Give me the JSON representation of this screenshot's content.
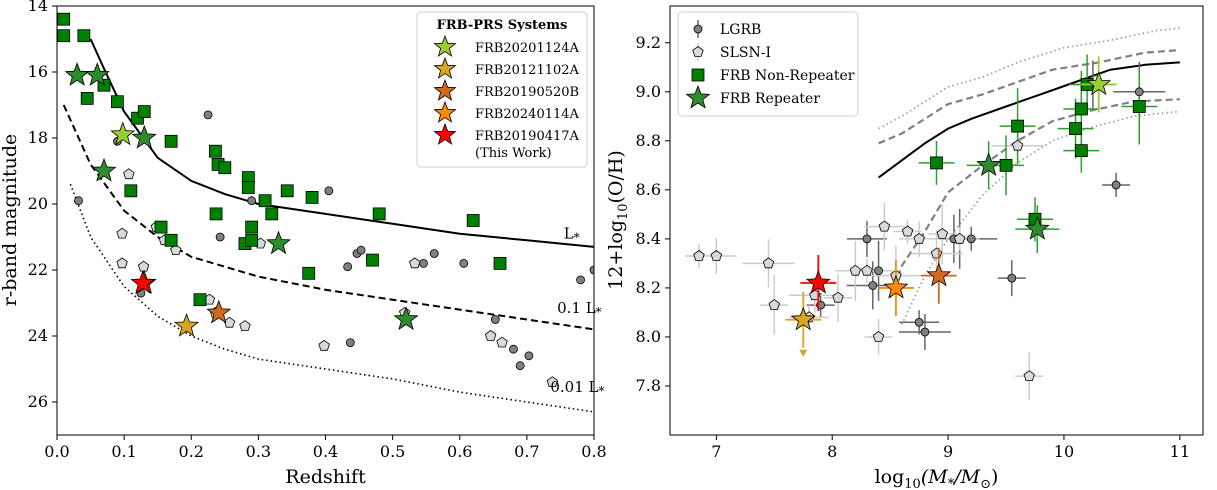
{
  "chart_data": [
    {
      "type": "scatter",
      "xlabel": "Redshift",
      "ylabel": "r-band magnitude",
      "xlim": [
        0.0,
        0.8
      ],
      "ylim": [
        27.0,
        14.0
      ],
      "y_inverted": true,
      "xticks": [
        0.0,
        0.1,
        0.2,
        0.3,
        0.4,
        0.5,
        0.6,
        0.7,
        0.8
      ],
      "yticks": [
        14,
        16,
        18,
        20,
        22,
        24,
        26
      ],
      "xtick_labels": [
        "0.0",
        "0.1",
        "0.2",
        "0.3",
        "0.4",
        "0.5",
        "0.6",
        "0.7",
        "0.8"
      ],
      "ytick_labels": [
        "14",
        "16",
        "18",
        "20",
        "22",
        "24",
        "26"
      ],
      "legend_title": "FRB-PRS Systems",
      "legend_position": "top-right",
      "curves": [
        {
          "label": "L*",
          "style": "solid",
          "points": [
            [
              0.05,
              15.0
            ],
            [
              0.07,
              15.9
            ],
            [
              0.1,
              17.2
            ],
            [
              0.15,
              18.6
            ],
            [
              0.2,
              19.3
            ],
            [
              0.25,
              19.7
            ],
            [
              0.3,
              20.0
            ],
            [
              0.4,
              20.3
            ],
            [
              0.5,
              20.6
            ],
            [
              0.6,
              20.9
            ],
            [
              0.7,
              21.1
            ],
            [
              0.8,
              21.3
            ]
          ]
        },
        {
          "label": "0.1 L*",
          "style": "dashed",
          "points": [
            [
              0.01,
              17.0
            ],
            [
              0.05,
              18.8
            ],
            [
              0.1,
              20.2
            ],
            [
              0.15,
              21.0
            ],
            [
              0.2,
              21.6
            ],
            [
              0.3,
              22.2
            ],
            [
              0.4,
              22.6
            ],
            [
              0.5,
              22.9
            ],
            [
              0.6,
              23.2
            ],
            [
              0.7,
              23.5
            ],
            [
              0.8,
              23.8
            ]
          ]
        },
        {
          "label": "0.01 L*",
          "style": "dotted",
          "points": [
            [
              0.02,
              19.4
            ],
            [
              0.05,
              21.0
            ],
            [
              0.1,
              22.5
            ],
            [
              0.15,
              23.4
            ],
            [
              0.2,
              24.0
            ],
            [
              0.25,
              24.4
            ],
            [
              0.3,
              24.7
            ],
            [
              0.4,
              25.0
            ],
            [
              0.5,
              25.3
            ],
            [
              0.6,
              25.7
            ],
            [
              0.7,
              26.0
            ],
            [
              0.8,
              26.3
            ]
          ]
        }
      ],
      "curve_labels": [
        {
          "text": "L",
          "sub": "*",
          "x": 0.755,
          "y": 21.05
        },
        {
          "text": "0.1 L",
          "sub": "*",
          "x": 0.745,
          "y": 23.3
        },
        {
          "text": "0.01 L",
          "sub": "*",
          "x": 0.735,
          "y": 25.7
        }
      ],
      "series": [
        {
          "name": "LGRB",
          "marker": "circle",
          "color": "#808080",
          "points": [
            [
              0.032,
              19.9
            ],
            [
              0.09,
              18.1
            ],
            [
              0.125,
              22.7
            ],
            [
              0.225,
              17.3
            ],
            [
              0.243,
              21.0
            ],
            [
              0.29,
              19.9
            ],
            [
              0.405,
              19.6
            ],
            [
              0.433,
              21.9
            ],
            [
              0.437,
              24.2
            ],
            [
              0.447,
              21.5
            ],
            [
              0.453,
              21.4
            ],
            [
              0.546,
              21.8
            ],
            [
              0.562,
              21.5
            ],
            [
              0.606,
              21.8
            ],
            [
              0.653,
              23.5
            ],
            [
              0.68,
              24.4
            ],
            [
              0.69,
              24.9
            ],
            [
              0.703,
              24.6
            ],
            [
              0.78,
              22.3
            ],
            [
              0.8,
              22.0
            ]
          ]
        },
        {
          "name": "SLSN-I",
          "marker": "pentagon",
          "color": "#d9d9d9",
          "points": [
            [
              0.097,
              20.9
            ],
            [
              0.097,
              21.8
            ],
            [
              0.107,
              19.1
            ],
            [
              0.129,
              21.9
            ],
            [
              0.148,
              20.7
            ],
            [
              0.16,
              21.1
            ],
            [
              0.177,
              21.4
            ],
            [
              0.227,
              22.9
            ],
            [
              0.236,
              23.3
            ],
            [
              0.257,
              23.6
            ],
            [
              0.28,
              23.7
            ],
            [
              0.303,
              21.2
            ],
            [
              0.398,
              24.3
            ],
            [
              0.518,
              23.3
            ],
            [
              0.533,
              21.8
            ],
            [
              0.646,
              24.0
            ],
            [
              0.663,
              24.2
            ],
            [
              0.738,
              25.4
            ]
          ]
        },
        {
          "name": "FRB Non-Repeater",
          "marker": "square",
          "color": "#008000",
          "points": [
            [
              0.01,
              14.4
            ],
            [
              0.01,
              14.9
            ],
            [
              0.04,
              14.9
            ],
            [
              0.045,
              16.8
            ],
            [
              0.07,
              16.4
            ],
            [
              0.09,
              16.9
            ],
            [
              0.12,
              17.4
            ],
            [
              0.13,
              17.2
            ],
            [
              0.155,
              20.7
            ],
            [
              0.17,
              18.1
            ],
            [
              0.17,
              21.1
            ],
            [
              0.11,
              19.6
            ],
            [
              0.213,
              22.9
            ],
            [
              0.236,
              18.4
            ],
            [
              0.24,
              18.8
            ],
            [
              0.25,
              18.9
            ],
            [
              0.237,
              20.3
            ],
            [
              0.28,
              21.2
            ],
            [
              0.285,
              19.2
            ],
            [
              0.285,
              19.5
            ],
            [
              0.29,
              20.7
            ],
            [
              0.29,
              21.1
            ],
            [
              0.31,
              19.9
            ],
            [
              0.32,
              20.3
            ],
            [
              0.343,
              19.6
            ],
            [
              0.375,
              22.1
            ],
            [
              0.38,
              19.8
            ],
            [
              0.47,
              21.7
            ],
            [
              0.48,
              20.3
            ],
            [
              0.62,
              20.5
            ],
            [
              0.66,
              21.8
            ]
          ]
        },
        {
          "name": "FRB Repeater",
          "marker": "star",
          "color": "#1f7a1f",
          "points": [
            [
              0.03,
              16.1
            ],
            [
              0.06,
              16.1
            ],
            [
              0.07,
              19.0
            ],
            [
              0.13,
              18.0
            ],
            [
              0.33,
              21.2
            ],
            [
              0.52,
              23.5
            ]
          ]
        }
      ],
      "highlight": [
        {
          "name": "FRB20201124A",
          "color": "#9acd32",
          "x": 0.098,
          "y": 17.9
        },
        {
          "name": "FRB20121102A",
          "color": "#daa520",
          "x": 0.193,
          "y": 23.7
        },
        {
          "name": "FRB20190520B",
          "color": "#d2691e",
          "x": 0.241,
          "y": 23.3
        },
        {
          "name": "FRB20240114A",
          "color": "#ff8c00",
          "x": 0.13,
          "y": 22.4
        },
        {
          "name": "FRB20190417A",
          "color": "#ff0000",
          "x": 0.128,
          "y": 22.4,
          "sublabel": "(This Work)"
        }
      ]
    },
    {
      "type": "scatter",
      "xlabel": "log10(M*/M⊙)",
      "ylabel": "12+log10(O/H)",
      "xlim": [
        6.6,
        11.2
      ],
      "ylim": [
        7.6,
        9.35
      ],
      "xticks": [
        7,
        8,
        9,
        10,
        11
      ],
      "yticks": [
        7.8,
        8.0,
        8.2,
        8.4,
        8.6,
        8.8,
        9.0,
        9.2
      ],
      "xtick_labels": [
        "7",
        "8",
        "9",
        "10",
        "11"
      ],
      "ytick_labels": [
        "7.8",
        "8.0",
        "8.2",
        "8.4",
        "8.6",
        "8.8",
        "9.0",
        "9.2"
      ],
      "legend_position": "top-left",
      "relations": [
        {
          "style": "solid",
          "points": [
            [
              8.4,
              8.65
            ],
            [
              8.6,
              8.72
            ],
            [
              8.8,
              8.79
            ],
            [
              9.0,
              8.85
            ],
            [
              9.2,
              8.89
            ],
            [
              9.5,
              8.94
            ],
            [
              9.8,
              8.99
            ],
            [
              10.1,
              9.04
            ],
            [
              10.4,
              9.09
            ],
            [
              10.7,
              9.11
            ],
            [
              11.0,
              9.12
            ]
          ]
        },
        {
          "style": "dashed",
          "points": [
            [
              8.4,
              8.79
            ],
            [
              8.6,
              8.83
            ],
            [
              8.8,
              8.89
            ],
            [
              9.0,
              8.95
            ],
            [
              9.3,
              8.99
            ],
            [
              9.6,
              9.04
            ],
            [
              9.9,
              9.09
            ],
            [
              10.3,
              9.12
            ],
            [
              10.7,
              9.16
            ],
            [
              11.0,
              9.17
            ]
          ]
        },
        {
          "style": "dashed",
          "points": [
            [
              8.5,
              8.16
            ],
            [
              8.6,
              8.29
            ],
            [
              8.8,
              8.43
            ],
            [
              9.0,
              8.59
            ],
            [
              9.3,
              8.7
            ],
            [
              9.6,
              8.8
            ],
            [
              9.9,
              8.88
            ],
            [
              10.2,
              8.92
            ],
            [
              10.6,
              8.96
            ],
            [
              11.0,
              8.97
            ]
          ]
        },
        {
          "style": "dotted",
          "points": [
            [
              8.4,
              8.85
            ],
            [
              8.6,
              8.9
            ],
            [
              8.8,
              8.96
            ],
            [
              9.0,
              9.02
            ],
            [
              9.3,
              9.06
            ],
            [
              9.6,
              9.12
            ],
            [
              10.0,
              9.18
            ],
            [
              10.4,
              9.21
            ],
            [
              10.8,
              9.25
            ],
            [
              11.0,
              9.26
            ]
          ]
        },
        {
          "style": "dotted",
          "points": [
            [
              8.6,
              8.05
            ],
            [
              8.8,
              8.25
            ],
            [
              9.0,
              8.4
            ],
            [
              9.3,
              8.58
            ],
            [
              9.6,
              8.71
            ],
            [
              9.9,
              8.8
            ],
            [
              10.2,
              8.85
            ],
            [
              10.6,
              8.9
            ],
            [
              11.0,
              8.92
            ]
          ]
        }
      ],
      "series": [
        {
          "name": "LGRB",
          "marker": "circle",
          "color": "#808080",
          "points": [
            [
              7.9,
              8.13
            ],
            [
              8.3,
              8.4
            ],
            [
              8.35,
              8.21
            ],
            [
              8.4,
              8.27
            ],
            [
              8.75,
              8.06
            ],
            [
              8.8,
              8.02
            ],
            [
              9.05,
              8.4
            ],
            [
              9.1,
              8.4
            ],
            [
              9.2,
              8.4
            ],
            [
              9.55,
              8.24
            ],
            [
              10.25,
              9.03
            ],
            [
              10.65,
              9.0
            ],
            [
              10.45,
              8.62
            ]
          ]
        },
        {
          "name": "SLSN-I",
          "marker": "pentagon",
          "color": "#d9d9d9",
          "points": [
            [
              6.85,
              8.33
            ],
            [
              7.0,
              8.33
            ],
            [
              7.45,
              8.3
            ],
            [
              7.5,
              8.13
            ],
            [
              7.8,
              8.08
            ],
            [
              7.85,
              8.17
            ],
            [
              8.05,
              8.16
            ],
            [
              8.2,
              8.27
            ],
            [
              8.3,
              8.27
            ],
            [
              8.4,
              8.0
            ],
            [
              8.45,
              8.45
            ],
            [
              8.55,
              8.25
            ],
            [
              8.65,
              8.43
            ],
            [
              8.75,
              8.4
            ],
            [
              8.9,
              8.34
            ],
            [
              8.95,
              8.42
            ],
            [
              9.1,
              8.4
            ],
            [
              9.6,
              8.78
            ],
            [
              9.7,
              7.84
            ]
          ]
        },
        {
          "name": "FRB Non-Repeater",
          "marker": "square",
          "color": "#008000",
          "points": [
            [
              8.9,
              8.71
            ],
            [
              9.5,
              8.7
            ],
            [
              9.6,
              8.86
            ],
            [
              9.75,
              8.48
            ],
            [
              10.1,
              8.85
            ],
            [
              10.15,
              8.93
            ],
            [
              10.15,
              8.76
            ],
            [
              10.2,
              9.03
            ],
            [
              10.65,
              8.94
            ]
          ]
        },
        {
          "name": "FRB Repeater",
          "marker": "star",
          "color": "#1f7a1f",
          "points": [
            [
              9.35,
              8.7
            ],
            [
              9.77,
              8.44
            ]
          ]
        }
      ],
      "highlight": [
        {
          "name": "FRB20201124A",
          "color": "#9acd32",
          "x": 10.3,
          "y": 9.03
        },
        {
          "name": "FRB20121102A",
          "color": "#daa520",
          "x": 7.75,
          "y": 8.07,
          "upper_limit": true
        },
        {
          "name": "FRB20190520B",
          "color": "#d2691e",
          "x": 8.92,
          "y": 8.25
        },
        {
          "name": "FRB20240114A",
          "color": "#ff8c00",
          "x": 8.55,
          "y": 8.2
        },
        {
          "name": "FRB20190417A",
          "color": "#ff0000",
          "x": 7.88,
          "y": 8.22
        }
      ]
    }
  ]
}
